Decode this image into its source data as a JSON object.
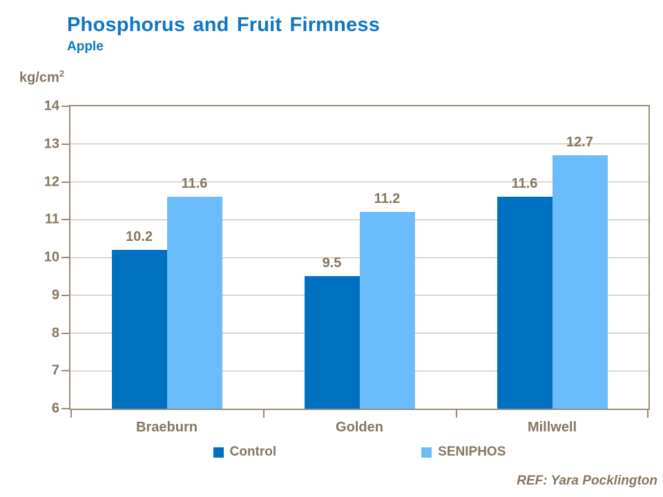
{
  "slide": {
    "title": "Phosphorus and Fruit Firmness",
    "subtitle": "Apple",
    "unit_base": "kg/cm",
    "unit_exponent": "2",
    "footer": "REF: Yara Pocklington"
  },
  "colors": {
    "title_blue": "#0E76C3",
    "subtitle_blue": "#0879C9",
    "text_brown": "#867660",
    "axis": "#9A8C77",
    "grid": "#BFB3A3",
    "control_bar": "#0071C1",
    "seniphos_bar": "#6ABCFA",
    "background": "#FFFFFF"
  },
  "chart_data": {
    "type": "bar",
    "title": "Phosphorus and Fruit Firmness",
    "subtitle": "Apple",
    "ylabel": "kg/cm2",
    "xlabel": "",
    "categories": [
      "Braeburn",
      "Golden",
      "Millwell"
    ],
    "series": [
      {
        "name": "Control",
        "color": "#0071C1",
        "values": [
          10.2,
          9.5,
          11.6
        ]
      },
      {
        "name": "SENIPHOS",
        "color": "#6ABCFA",
        "values": [
          11.6,
          11.2,
          12.7
        ]
      }
    ],
    "ylim": [
      6,
      14
    ],
    "yticks": [
      6,
      7,
      8,
      9,
      10,
      11,
      12,
      13,
      14
    ],
    "grid": "horizontal",
    "legend_position": "bottom",
    "value_labels": true,
    "value_label_format": "0.1f"
  }
}
